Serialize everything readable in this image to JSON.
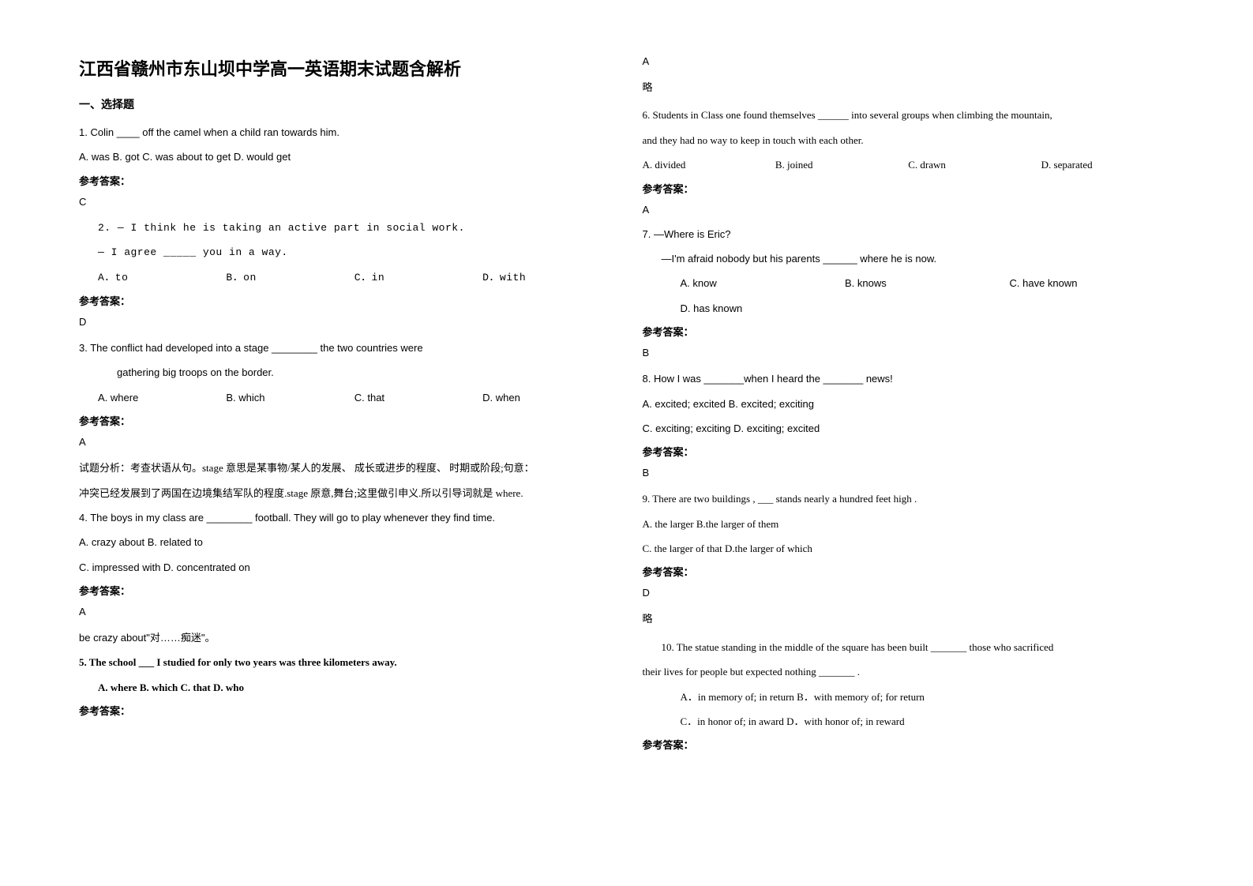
{
  "title": "江西省赣州市东山坝中学高一英语期末试题含解析",
  "section_header": "一、选择题",
  "answer_label": "参考答案：",
  "skip_text": "略",
  "questions": {
    "q1": {
      "text": "1. Colin ____ off the camel when a child ran towards him.",
      "options": "A. was    B. got    C. was about to get    D. would get",
      "answer": "C"
    },
    "q2": {
      "line1": "2. ― I think he is taking an active part in social work.",
      "line2": "― I agree _____ you in a way.",
      "optA": "A．to",
      "optB": "B．on",
      "optC": "C．in",
      "optD": "D．with",
      "answer": "D"
    },
    "q3": {
      "line1": "3. The conflict had developed into a stage ________ the two countries were",
      "line2": "gathering big troops on the border.",
      "optA": "A. where",
      "optB": "B. which",
      "optC": "C. that",
      "optD": "D. when",
      "answer": "A",
      "analysis1": "试题分析：考查状语从句。stage 意思是某事物/某人的发展、 成长或进步的程度、 时期或阶段;句意：",
      "analysis2": "冲突已经发展到了两国在边境集结军队的程度.stage 原意,舞台;这里做引申义.所以引导词就是 where."
    },
    "q4": {
      "text": "4. The boys in my class are ________ football. They will go to play whenever they find time.",
      "opts1": "A. crazy about     B. related to",
      "opts2": "C. impressed with      D. concentrated on",
      "answer": "A",
      "analysis": "be crazy about\"对……痴迷\"。"
    },
    "q5": {
      "text": "5. The school ___ I studied for only two years was three kilometers away.",
      "options": "A. where       B. which     C. that        D. who",
      "answer": "A"
    },
    "q6": {
      "line1": "6. Students in Class one found themselves ______ into several groups when climbing the mountain,",
      "line2": "and they had no way to keep in touch with each other.",
      "optA": "A. divided",
      "optB": "B. joined",
      "optC": "C. drawn",
      "optD": "D. separated",
      "answer": "A"
    },
    "q7": {
      "line1": "7. —Where is Eric?",
      "line2": "—I'm afraid nobody but his parents ______ where he is now.",
      "optA": "A. know",
      "optB": "B. knows",
      "optC": "C. have known",
      "optD": "D. has known",
      "answer": "B"
    },
    "q8": {
      "text": "8. How I was _______when I heard the _______ news!",
      "opts1": "A. excited; excited     B. excited; exciting",
      "opts2": "C. exciting; exciting    D. exciting; excited",
      "answer": "B"
    },
    "q9": {
      "text": "9. There are two buildings , ___ stands nearly a hundred feet high .",
      "opts1": "A. the larger         B.the larger of them",
      "opts2": "C. the larger of that     D.the larger of which",
      "answer": "D"
    },
    "q10": {
      "line1": "10. The statue standing in the middle of the square has been built _______ those who sacrificed",
      "line2": "their lives for people but expected nothing _______ .",
      "opts1": "A．in memory of; in return       B．with memory of; for return",
      "opts2": "C．in honor of; in award           D．with honor of; in reward"
    }
  }
}
